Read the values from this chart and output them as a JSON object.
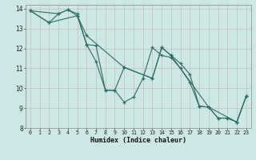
{
  "xlabel": "Humidex (Indice chaleur)",
  "bg_color": "#cce8e4",
  "line_color": "#2d6e65",
  "grid_color": "#aacfca",
  "xlim": [
    -0.5,
    23.5
  ],
  "ylim": [
    8,
    14.2
  ],
  "xticks": [
    0,
    1,
    2,
    3,
    4,
    5,
    6,
    7,
    8,
    9,
    10,
    11,
    12,
    13,
    14,
    15,
    16,
    17,
    18,
    19,
    20,
    21,
    22,
    23
  ],
  "yticks": [
    8,
    9,
    10,
    11,
    12,
    13,
    14
  ],
  "line1": [
    [
      0,
      13.9
    ],
    [
      2,
      13.3
    ],
    [
      3,
      13.75
    ],
    [
      4,
      13.95
    ],
    [
      5,
      13.65
    ],
    [
      6,
      12.2
    ],
    [
      7,
      11.35
    ],
    [
      8,
      9.9
    ],
    [
      9,
      9.9
    ],
    [
      10,
      9.3
    ],
    [
      11,
      9.55
    ],
    [
      12,
      10.5
    ],
    [
      13,
      12.05
    ],
    [
      14,
      11.65
    ],
    [
      15,
      11.55
    ],
    [
      16,
      11.0
    ],
    [
      17,
      10.3
    ],
    [
      18,
      9.1
    ],
    [
      19,
      9.05
    ],
    [
      20,
      8.5
    ],
    [
      21,
      8.5
    ],
    [
      22,
      8.3
    ],
    [
      23,
      9.6
    ]
  ],
  "line2": [
    [
      0,
      13.9
    ],
    [
      2,
      13.3
    ],
    [
      5,
      13.65
    ],
    [
      6,
      12.65
    ],
    [
      10,
      11.05
    ],
    [
      13,
      10.5
    ],
    [
      14,
      12.05
    ],
    [
      15,
      11.65
    ],
    [
      19,
      9.05
    ],
    [
      22,
      8.3
    ],
    [
      23,
      9.6
    ]
  ],
  "line3": [
    [
      0,
      13.9
    ],
    [
      3,
      13.75
    ],
    [
      4,
      13.95
    ],
    [
      5,
      13.75
    ],
    [
      6,
      12.2
    ],
    [
      7,
      12.15
    ],
    [
      8,
      9.9
    ],
    [
      9,
      9.9
    ],
    [
      10,
      11.05
    ],
    [
      13,
      10.5
    ],
    [
      14,
      12.05
    ],
    [
      15,
      11.65
    ],
    [
      16,
      11.25
    ],
    [
      17,
      10.7
    ],
    [
      18,
      9.1
    ],
    [
      19,
      9.05
    ],
    [
      20,
      8.5
    ],
    [
      21,
      8.5
    ],
    [
      22,
      8.3
    ],
    [
      23,
      9.6
    ]
  ]
}
